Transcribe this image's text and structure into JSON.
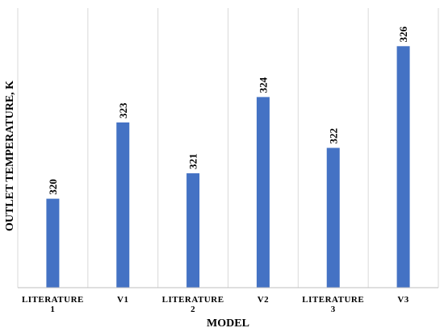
{
  "chart_data": {
    "type": "bar",
    "categories": [
      [
        "LITERATURE",
        "1"
      ],
      [
        "V1"
      ],
      [
        "LITERATURE",
        "2"
      ],
      [
        "V2"
      ],
      [
        "LITERATURE",
        "3"
      ],
      [
        "V3"
      ]
    ],
    "values": [
      320,
      323,
      321,
      324,
      322,
      326
    ],
    "xlabel": "MODEL",
    "ylabel": "OUTLET TEMPERATURE, K",
    "ylim": [
      316.5,
      327.5
    ],
    "bar_color": "#4472c4",
    "grid": "vertical",
    "grid_color": "#d9d9d9",
    "axis_color": "#bfbfbf",
    "value_labels": true
  }
}
